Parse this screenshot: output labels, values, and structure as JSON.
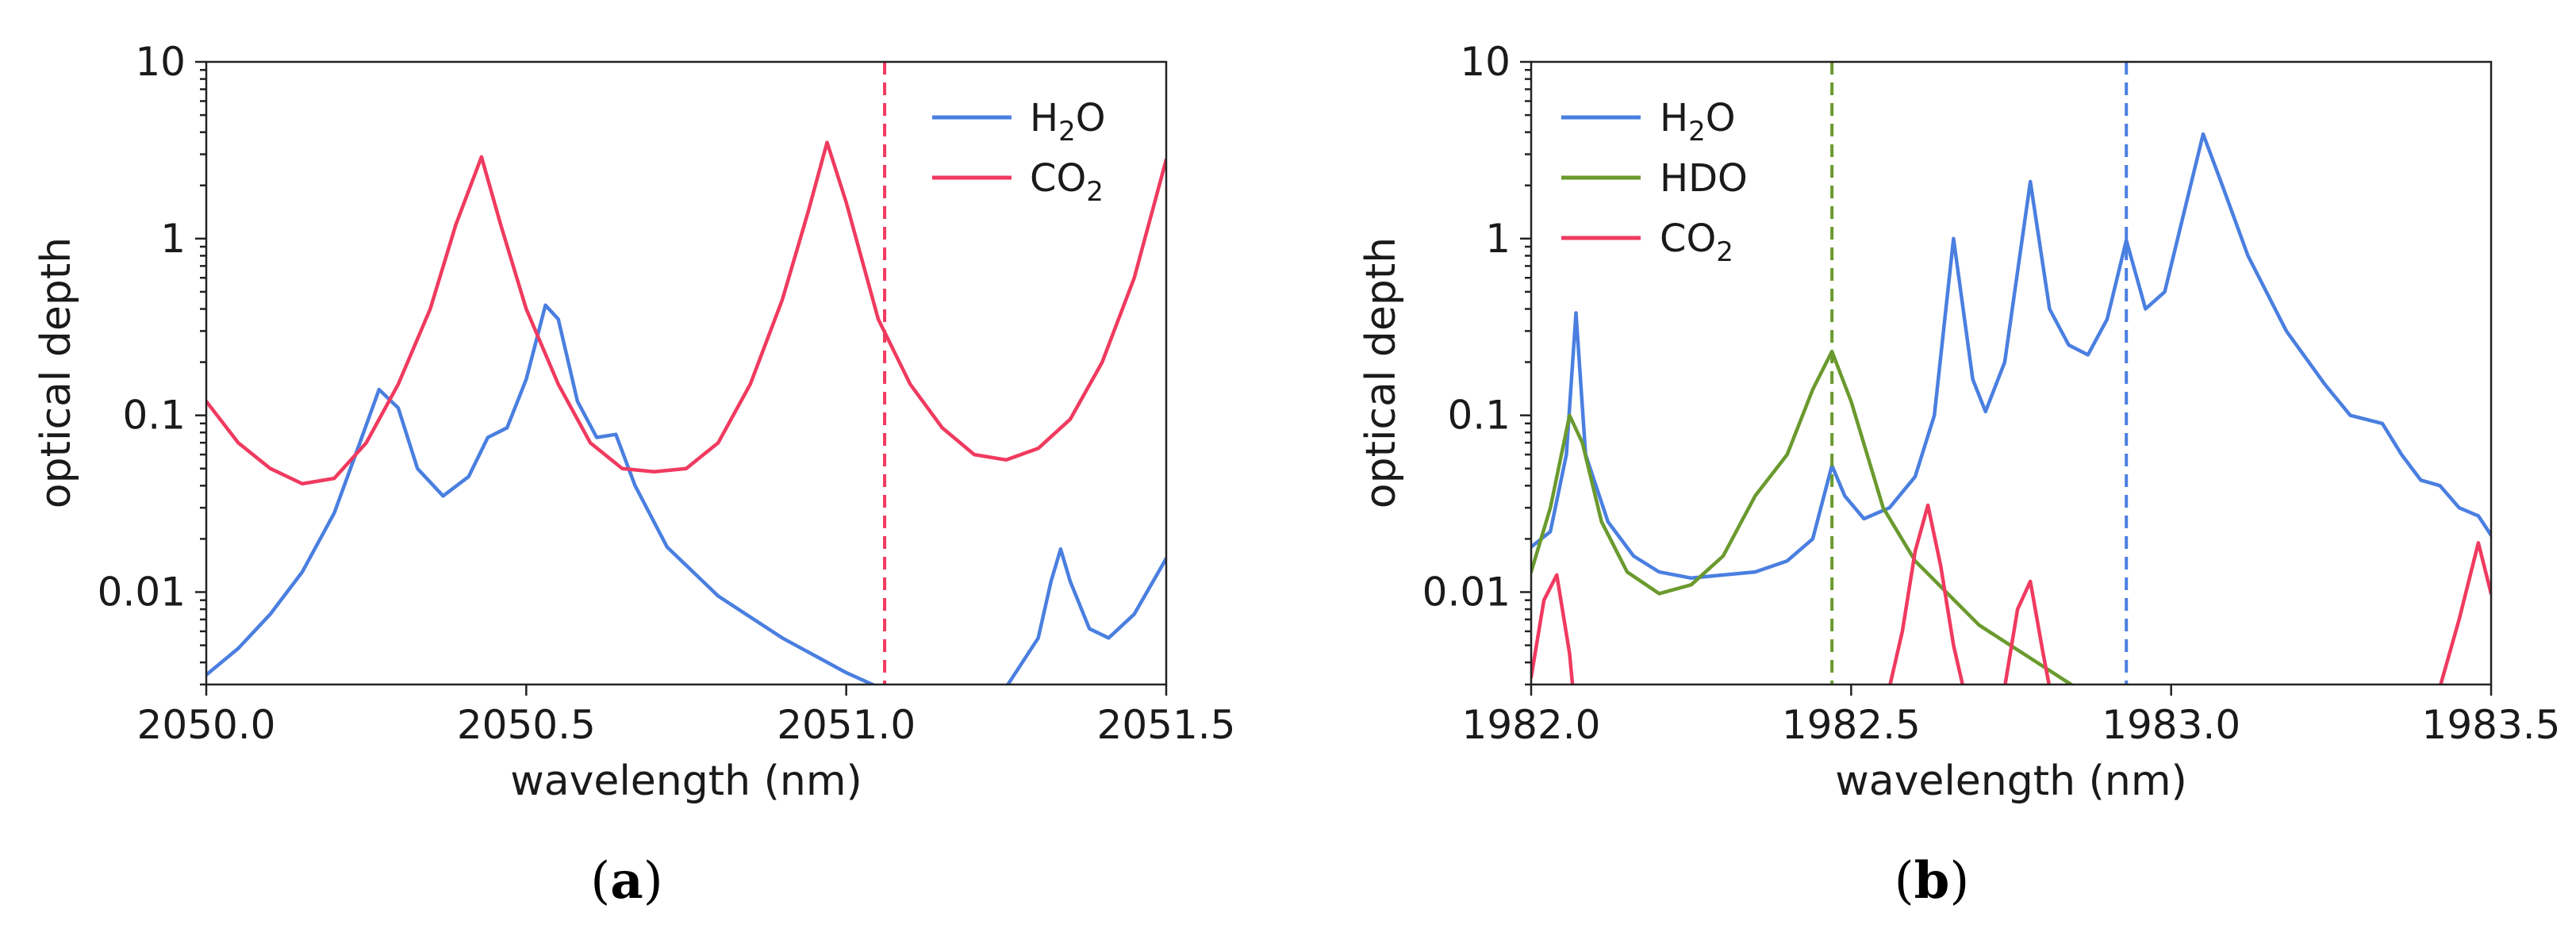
{
  "colors": {
    "H2O": "#4a7fe0",
    "CO2": "#f03a5f",
    "HDO": "#6a9a2e"
  },
  "chart_data": [
    {
      "id": "a",
      "panel_label": {
        "open": "(",
        "letter": "a",
        "close": ")"
      },
      "type": "line",
      "xscale": "linear",
      "yscale": "log",
      "xlabel": "wavelength (nm)",
      "ylabel": "optical depth",
      "xlim": [
        2050.0,
        2051.5
      ],
      "ylim": [
        0.003,
        10
      ],
      "xticks": [
        2050.0,
        2050.5,
        2051.0,
        2051.5
      ],
      "xtick_labels": [
        "2050.0",
        "2050.5",
        "2051.0",
        "2051.5"
      ],
      "yticks": [
        0.01,
        0.1,
        1,
        10
      ],
      "ytick_labels": [
        "0.01",
        "0.1",
        "1",
        "10"
      ],
      "grid": false,
      "legend_position": "top-right",
      "vlines": [
        {
          "x": 2051.06,
          "color_key": "CO2",
          "style": "dashed"
        }
      ],
      "series": [
        {
          "key": "H2O",
          "name": {
            "base": "H",
            "sub": "2",
            "tail": "O"
          },
          "points": [
            [
              2050.0,
              0.0034
            ],
            [
              2050.05,
              0.0048
            ],
            [
              2050.1,
              0.0075
            ],
            [
              2050.15,
              0.013
            ],
            [
              2050.2,
              0.028
            ],
            [
              2050.24,
              0.07
            ],
            [
              2050.27,
              0.14
            ],
            [
              2050.3,
              0.11
            ],
            [
              2050.33,
              0.05
            ],
            [
              2050.37,
              0.035
            ],
            [
              2050.41,
              0.045
            ],
            [
              2050.44,
              0.075
            ],
            [
              2050.47,
              0.085
            ],
            [
              2050.5,
              0.16
            ],
            [
              2050.53,
              0.42
            ],
            [
              2050.55,
              0.35
            ],
            [
              2050.58,
              0.12
            ],
            [
              2050.61,
              0.075
            ],
            [
              2050.64,
              0.078
            ],
            [
              2050.67,
              0.04
            ],
            [
              2050.72,
              0.018
            ],
            [
              2050.8,
              0.0095
            ],
            [
              2050.9,
              0.0055
            ],
            [
              2051.0,
              0.0035
            ],
            [
              2051.05,
              0.0029
            ],
            [
              2051.25,
              0.0029
            ],
            [
              2051.3,
              0.0055
            ],
            [
              2051.32,
              0.0115
            ],
            [
              2051.335,
              0.0175
            ],
            [
              2051.35,
              0.0115
            ],
            [
              2051.38,
              0.0062
            ],
            [
              2051.41,
              0.0055
            ],
            [
              2051.45,
              0.0075
            ],
            [
              2051.5,
              0.0155
            ]
          ]
        },
        {
          "key": "CO2",
          "name": {
            "base": "CO",
            "sub": "2",
            "tail": ""
          },
          "points": [
            [
              2050.0,
              0.12
            ],
            [
              2050.05,
              0.07
            ],
            [
              2050.1,
              0.05
            ],
            [
              2050.15,
              0.041
            ],
            [
              2050.2,
              0.044
            ],
            [
              2050.25,
              0.07
            ],
            [
              2050.3,
              0.15
            ],
            [
              2050.35,
              0.4
            ],
            [
              2050.39,
              1.2
            ],
            [
              2050.43,
              2.9
            ],
            [
              2050.46,
              1.2
            ],
            [
              2050.5,
              0.4
            ],
            [
              2050.55,
              0.15
            ],
            [
              2050.6,
              0.07
            ],
            [
              2050.65,
              0.05
            ],
            [
              2050.7,
              0.048
            ],
            [
              2050.75,
              0.05
            ],
            [
              2050.8,
              0.07
            ],
            [
              2050.85,
              0.15
            ],
            [
              2050.9,
              0.45
            ],
            [
              2050.94,
              1.4
            ],
            [
              2050.97,
              3.5
            ],
            [
              2051.0,
              1.6
            ],
            [
              2051.05,
              0.35
            ],
            [
              2051.1,
              0.15
            ],
            [
              2051.15,
              0.085
            ],
            [
              2051.2,
              0.06
            ],
            [
              2051.25,
              0.056
            ],
            [
              2051.3,
              0.065
            ],
            [
              2051.35,
              0.095
            ],
            [
              2051.4,
              0.2
            ],
            [
              2051.45,
              0.6
            ],
            [
              2051.5,
              2.8
            ]
          ]
        }
      ]
    },
    {
      "id": "b",
      "panel_label": {
        "open": "(",
        "letter": "b",
        "close": ")"
      },
      "type": "line",
      "xscale": "linear",
      "yscale": "log",
      "xlabel": "wavelength (nm)",
      "ylabel": "optical depth",
      "xlim": [
        1982.0,
        1983.5
      ],
      "ylim": [
        0.003,
        10
      ],
      "xticks": [
        1982.0,
        1982.5,
        1983.0,
        1983.5
      ],
      "xtick_labels": [
        "1982.0",
        "1982.5",
        "1983.0",
        "1983.5"
      ],
      "yticks": [
        0.01,
        0.1,
        1,
        10
      ],
      "ytick_labels": [
        "0.01",
        "0.1",
        "1",
        "10"
      ],
      "grid": false,
      "legend_position": "top-left",
      "vlines": [
        {
          "x": 1982.47,
          "color_key": "HDO",
          "style": "dashed"
        },
        {
          "x": 1982.93,
          "color_key": "H2O",
          "style": "dashed"
        }
      ],
      "series": [
        {
          "key": "H2O",
          "name": {
            "base": "H",
            "sub": "2",
            "tail": "O"
          },
          "points": [
            [
              1982.0,
              0.018
            ],
            [
              1982.03,
              0.022
            ],
            [
              1982.055,
              0.06
            ],
            [
              1982.07,
              0.38
            ],
            [
              1982.085,
              0.06
            ],
            [
              1982.12,
              0.025
            ],
            [
              1982.16,
              0.016
            ],
            [
              1982.2,
              0.013
            ],
            [
              1982.25,
              0.012
            ],
            [
              1982.3,
              0.0125
            ],
            [
              1982.35,
              0.013
            ],
            [
              1982.4,
              0.015
            ],
            [
              1982.44,
              0.02
            ],
            [
              1982.47,
              0.052
            ],
            [
              1982.49,
              0.035
            ],
            [
              1982.52,
              0.026
            ],
            [
              1982.56,
              0.03
            ],
            [
              1982.6,
              0.045
            ],
            [
              1982.63,
              0.1
            ],
            [
              1982.66,
              1.0
            ],
            [
              1982.69,
              0.16
            ],
            [
              1982.71,
              0.105
            ],
            [
              1982.74,
              0.2
            ],
            [
              1982.78,
              2.1
            ],
            [
              1982.81,
              0.4
            ],
            [
              1982.84,
              0.25
            ],
            [
              1982.87,
              0.22
            ],
            [
              1982.9,
              0.35
            ],
            [
              1982.93,
              0.98
            ],
            [
              1982.96,
              0.4
            ],
            [
              1982.99,
              0.5
            ],
            [
              1983.02,
              1.4
            ],
            [
              1983.05,
              3.9
            ],
            [
              1983.08,
              2.0
            ],
            [
              1983.12,
              0.8
            ],
            [
              1983.18,
              0.3
            ],
            [
              1983.24,
              0.15
            ],
            [
              1983.28,
              0.1
            ],
            [
              1983.33,
              0.09
            ],
            [
              1983.36,
              0.06
            ],
            [
              1983.39,
              0.043
            ],
            [
              1983.42,
              0.04
            ],
            [
              1983.45,
              0.03
            ],
            [
              1983.48,
              0.027
            ],
            [
              1983.5,
              0.021
            ]
          ]
        },
        {
          "key": "HDO",
          "name": {
            "base": "HDO",
            "sub": "",
            "tail": ""
          },
          "points": [
            [
              1982.0,
              0.013
            ],
            [
              1982.03,
              0.03
            ],
            [
              1982.06,
              0.1
            ],
            [
              1982.08,
              0.07
            ],
            [
              1982.11,
              0.025
            ],
            [
              1982.15,
              0.013
            ],
            [
              1982.2,
              0.0098
            ],
            [
              1982.25,
              0.011
            ],
            [
              1982.3,
              0.016
            ],
            [
              1982.35,
              0.035
            ],
            [
              1982.4,
              0.06
            ],
            [
              1982.44,
              0.14
            ],
            [
              1982.47,
              0.23
            ],
            [
              1982.5,
              0.12
            ],
            [
              1982.55,
              0.03
            ],
            [
              1982.6,
              0.015
            ],
            [
              1982.7,
              0.0065
            ],
            [
              1982.8,
              0.0038
            ],
            [
              1982.85,
              0.0029
            ]
          ]
        },
        {
          "key": "CO2",
          "name": {
            "base": "CO",
            "sub": "2",
            "tail": ""
          },
          "points": [
            [
              1982.0,
              0.0033
            ],
            [
              1982.02,
              0.009
            ],
            [
              1982.04,
              0.0125
            ],
            [
              1982.06,
              0.0045
            ],
            [
              1982.065,
              0.0029
            ],
            [
              1982.56,
              0.0029
            ],
            [
              1982.58,
              0.006
            ],
            [
              1982.6,
              0.017
            ],
            [
              1982.62,
              0.031
            ],
            [
              1982.64,
              0.014
            ],
            [
              1982.66,
              0.005
            ],
            [
              1982.675,
              0.0029
            ],
            [
              1982.74,
              0.0029
            ],
            [
              1982.76,
              0.008
            ],
            [
              1982.78,
              0.0115
            ],
            [
              1982.8,
              0.0045
            ],
            [
              1982.81,
              0.0029
            ],
            [
              1983.42,
              0.0029
            ],
            [
              1983.45,
              0.007
            ],
            [
              1983.48,
              0.019
            ],
            [
              1983.5,
              0.0098
            ]
          ]
        }
      ]
    }
  ]
}
